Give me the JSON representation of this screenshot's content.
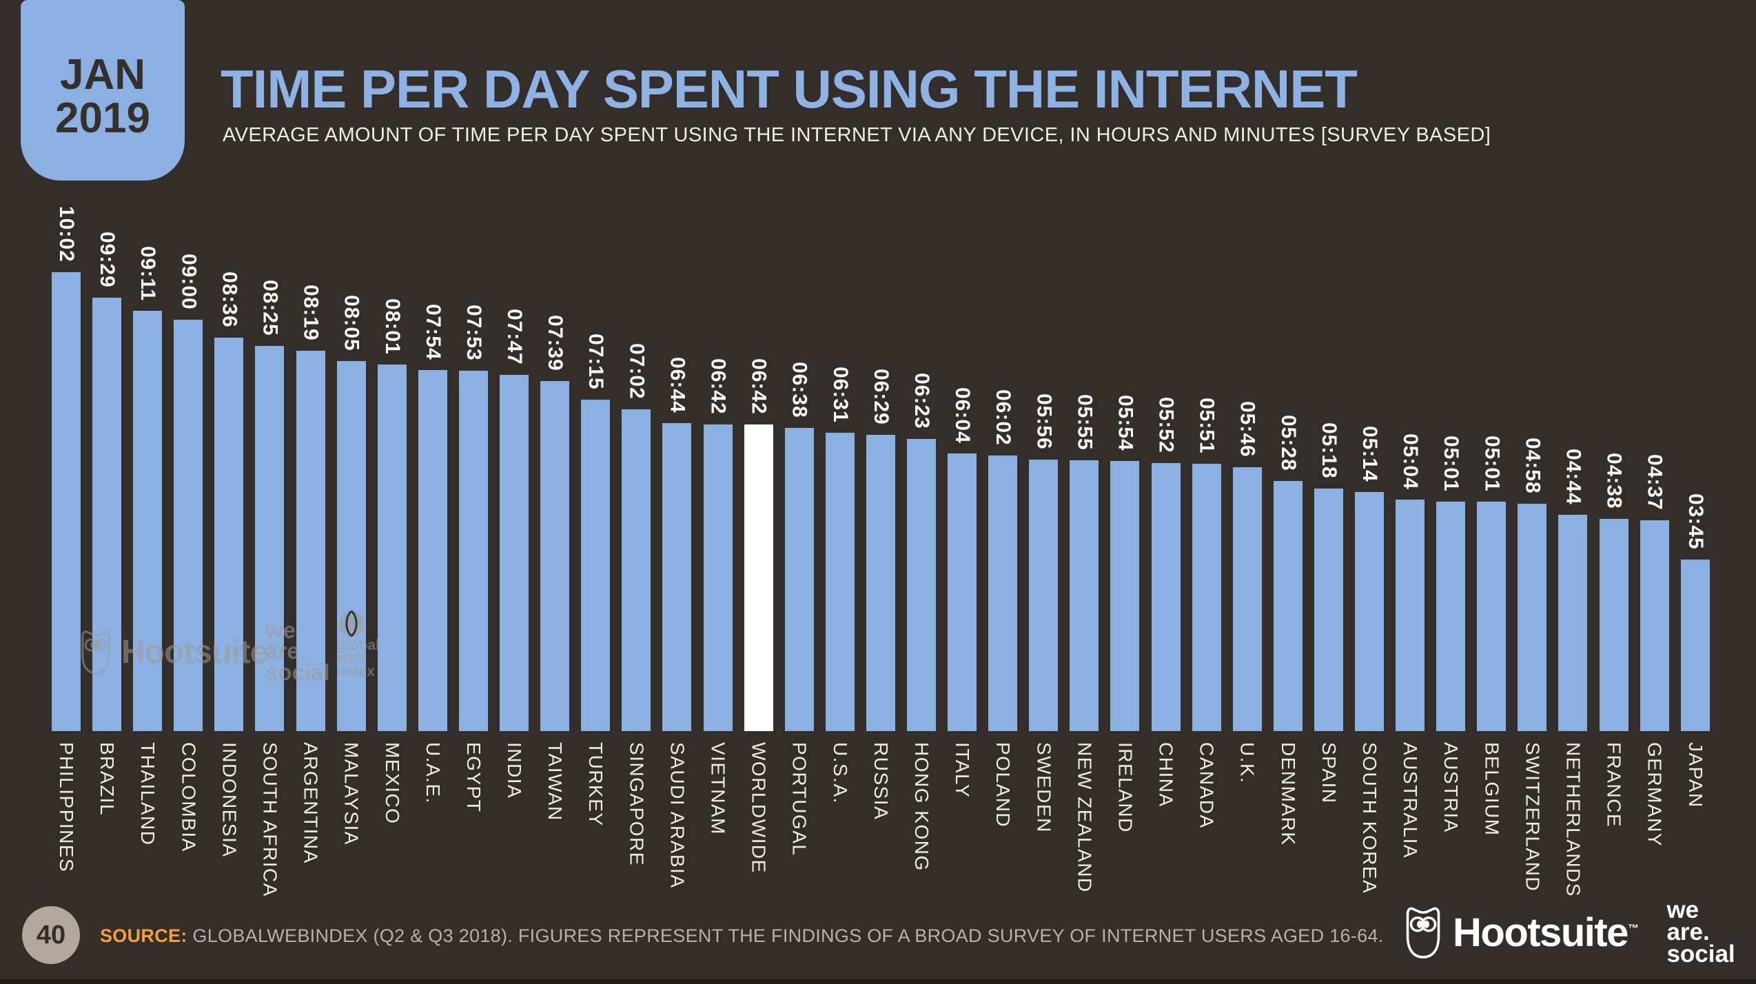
{
  "badge": {
    "month": "JAN",
    "year": "2019"
  },
  "header": {
    "title": "TIME PER DAY SPENT USING THE INTERNET",
    "subtitle": "AVERAGE AMOUNT OF TIME PER DAY SPENT USING THE INTERNET VIA ANY DEVICE, IN HOURS AND MINUTES [SURVEY BASED]"
  },
  "chart_data": {
    "type": "bar",
    "title": "TIME PER DAY SPENT USING THE INTERNET",
    "value_format": "hh:mm per day",
    "categories": [
      "PHILIPPINES",
      "BRAZIL",
      "THAILAND",
      "COLOMBIA",
      "INDONESIA",
      "SOUTH AFRICA",
      "ARGENTINA",
      "MALAYSIA",
      "MEXICO",
      "U.A.E.",
      "EGYPT",
      "INDIA",
      "TAIWAN",
      "TURKEY",
      "SINGAPORE",
      "SAUDI ARABIA",
      "VIETNAM",
      "WORLDWIDE",
      "PORTUGAL",
      "U.S.A.",
      "RUSSIA",
      "HONG KONG",
      "ITALY",
      "POLAND",
      "SWEDEN",
      "NEW ZEALAND",
      "IRELAND",
      "CHINA",
      "CANADA",
      "U.K.",
      "DENMARK",
      "SPAIN",
      "SOUTH KOREA",
      "AUSTRALIA",
      "AUSTRIA",
      "BELGIUM",
      "SWITZERLAND",
      "NETHERLANDS",
      "FRANCE",
      "GERMANY",
      "JAPAN"
    ],
    "values": [
      "10:02",
      "09:29",
      "09:11",
      "09:00",
      "08:36",
      "08:25",
      "08:19",
      "08:05",
      "08:01",
      "07:54",
      "07:53",
      "07:47",
      "07:39",
      "07:15",
      "07:02",
      "06:44",
      "06:42",
      "06:42",
      "06:38",
      "06:31",
      "06:29",
      "06:23",
      "06:04",
      "06:02",
      "05:56",
      "05:55",
      "05:54",
      "05:52",
      "05:51",
      "05:46",
      "05:28",
      "05:18",
      "05:14",
      "05:04",
      "05:01",
      "05:01",
      "04:58",
      "04:44",
      "04:38",
      "04:37",
      "03:45"
    ],
    "highlight_index": 17,
    "bar_color": "#8bb1e3",
    "highlight_color": "#ffffff",
    "background": "#332e2a",
    "value_label_color": "#fbf9f7",
    "category_label_color": "#eeebe6",
    "legend": "off",
    "gridlines": "off",
    "baseline_value_minutes": 0
  },
  "watermarks": {
    "hootsuite": "Hootsuite",
    "hootsuite_tm": "™",
    "we_are_social": [
      "we",
      "are.",
      "social"
    ],
    "global_web_index": [
      "global",
      "web",
      "index"
    ]
  },
  "footer": {
    "page_number": "40",
    "source_label": "SOURCE:",
    "source_text": " GLOBALWEBINDEX (Q2 & Q3 2018). FIGURES REPRESENT THE FINDINGS OF A BROAD SURVEY OF INTERNET USERS AGED 16-64."
  },
  "logos": {
    "hootsuite": "Hootsuite",
    "hootsuite_tm": "™",
    "we_are_social": [
      "we",
      "are.",
      "social"
    ]
  }
}
